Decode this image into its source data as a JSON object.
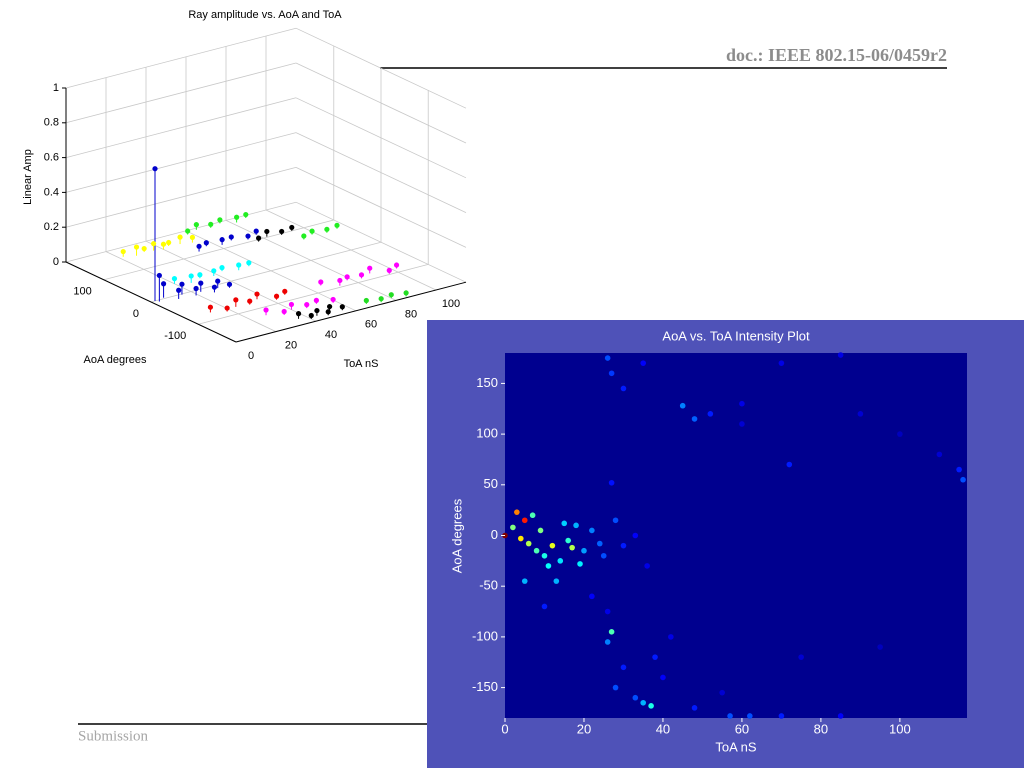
{
  "header": {
    "doc": "doc.: IEEE 802.15-06/0459r2"
  },
  "footer": {
    "text": "Submission"
  },
  "chart_data": [
    {
      "type": "scatter3d",
      "title": "Ray amplitude vs. AoA and ToA",
      "x_label": "ToA nS",
      "y_label": "AoA degrees",
      "z_label": "Linear Amp",
      "xlim": [
        0,
        115
      ],
      "ylim": [
        -180,
        180
      ],
      "zlim": [
        0,
        1
      ],
      "xticks": [
        0,
        20,
        40,
        60,
        80,
        100
      ],
      "yticks": [
        -100,
        0,
        100
      ],
      "zticks": [
        0,
        0.2,
        0.4,
        0.6,
        0.8,
        1
      ],
      "grid": true,
      "series": [
        {
          "color": "#0000cc",
          "x": [
            2
          ],
          "y": [
            0
          ],
          "z": [
            0.76
          ]
        },
        {
          "color": "#ffff00",
          "x": [
            22,
            27,
            32,
            36,
            40,
            44,
            49,
            54
          ],
          "y": [
            152,
            145,
            150,
            147,
            143,
            149,
            146,
            141
          ],
          "z": [
            0.03,
            0.05,
            0.02,
            0.04,
            0.03,
            0.02,
            0.04,
            0.03
          ]
        },
        {
          "color": "#0000cc",
          "x": [
            3,
            7,
            11,
            15,
            19,
            23,
            27,
            31,
            35
          ],
          "y": [
            -5,
            3,
            -12,
            -2,
            -15,
            -8,
            -20,
            -10,
            -18
          ],
          "z": [
            0.15,
            0.08,
            0.05,
            0.06,
            0.04,
            0.05,
            0.03,
            0.04,
            0.02
          ]
        },
        {
          "color": "#00ffff",
          "x": [
            20,
            26,
            32,
            38,
            44,
            50,
            56
          ],
          "y": [
            35,
            25,
            32,
            28,
            36,
            26,
            30
          ],
          "z": [
            0.03,
            0.04,
            0.02,
            0.03,
            0.02,
            0.03,
            0.02
          ]
        },
        {
          "color": "#ee0000",
          "x": [
            12,
            18,
            24,
            30,
            36,
            42,
            48
          ],
          "y": [
            -75,
            -85,
            -78,
            -82,
            -72,
            -88,
            -80
          ],
          "z": [
            0.03,
            0.02,
            0.04,
            0.02,
            0.03,
            0.02,
            0.02
          ]
        },
        {
          "color": "#ff00ff",
          "x": [
            66,
            72,
            78,
            84,
            90,
            96,
            102
          ],
          "y": [
            -80,
            -95,
            -85,
            -90,
            -82,
            -98,
            -88
          ],
          "z": [
            0.02,
            0.03,
            0.02,
            0.02,
            0.03,
            0.02,
            0.02
          ]
        },
        {
          "color": "#ff00ff",
          "x": [
            28,
            34,
            40,
            46,
            52,
            58
          ],
          "y": [
            -125,
            -138,
            -128,
            -135,
            -130,
            -140
          ],
          "z": [
            0.03,
            0.02,
            0.03,
            0.02,
            0.02,
            0.02
          ]
        },
        {
          "color": "#000000",
          "x": [
            36,
            40,
            44,
            48,
            52,
            56
          ],
          "y": [
            -160,
            -170,
            -165,
            -172,
            -158,
            -168
          ],
          "z": [
            0.03,
            0.02,
            0.03,
            0.02,
            0.02,
            0.02
          ]
        },
        {
          "color": "#22dd22",
          "x": [
            68,
            74,
            80,
            86
          ],
          "y": [
            -168,
            -174,
            -170,
            -176
          ],
          "z": [
            0.02,
            0.02,
            0.02,
            0.02
          ]
        },
        {
          "color": "#22ee22",
          "x": [
            58,
            64,
            70,
            76,
            82,
            88
          ],
          "y": [
            168,
            175,
            170,
            176,
            166,
            172
          ],
          "z": [
            0.02,
            0.03,
            0.02,
            0.02,
            0.03,
            0.02
          ]
        },
        {
          "color": "#0000cc",
          "x": [
            50,
            56,
            62,
            68,
            74,
            80
          ],
          "y": [
            110,
            120,
            112,
            118,
            108,
            116
          ],
          "z": [
            0.03,
            0.02,
            0.03,
            0.02,
            0.02,
            0.02
          ]
        },
        {
          "color": "#000000",
          "x": [
            76,
            82,
            88,
            94
          ],
          "y": [
            94,
            102,
            96,
            100
          ],
          "z": [
            0.02,
            0.03,
            0.02,
            0.02
          ]
        },
        {
          "color": "#22ee22",
          "x": [
            92,
            98,
            104,
            110
          ],
          "y": [
            66,
            74,
            68,
            72
          ],
          "z": [
            0.02,
            0.02,
            0.02,
            0.02
          ]
        }
      ]
    },
    {
      "type": "scatter",
      "title": "AoA vs. ToA Intensity Plot",
      "x_label": "ToA nS",
      "y_label": "AoA degrees",
      "xlim": [
        0,
        117
      ],
      "ylim": [
        -180,
        180
      ],
      "xticks": [
        0,
        20,
        40,
        60,
        80,
        100
      ],
      "yticks": [
        -150,
        -100,
        -50,
        0,
        50,
        100,
        150
      ],
      "colormap": "jet",
      "clim": [
        0,
        1
      ],
      "background": "#00008f",
      "panel_color": "#4f52b8",
      "x": [
        0,
        3,
        5,
        6,
        8,
        9,
        10,
        12,
        14,
        16,
        18,
        20,
        22,
        25,
        28,
        30,
        33,
        36,
        2,
        4,
        7,
        11,
        15,
        19,
        13,
        17,
        24,
        10,
        22,
        26,
        5,
        27,
        26,
        27,
        30,
        35,
        45,
        48,
        52,
        60,
        70,
        72,
        85,
        90,
        100,
        115,
        116,
        110,
        60,
        26,
        27,
        28,
        30,
        33,
        35,
        37,
        38,
        40,
        42,
        48,
        55,
        57,
        62,
        70,
        75,
        85,
        95
      ],
      "y": [
        0,
        23,
        15,
        -8,
        -15,
        5,
        -20,
        -10,
        -25,
        -5,
        10,
        -15,
        5,
        -20,
        15,
        -10,
        0,
        -30,
        8,
        -3,
        20,
        -30,
        12,
        -28,
        -45,
        -12,
        -8,
        -70,
        -60,
        -75,
        -45,
        52,
        175,
        160,
        145,
        170,
        128,
        115,
        120,
        130,
        170,
        70,
        178,
        120,
        100,
        65,
        55,
        80,
        110,
        -105,
        -95,
        -150,
        -130,
        -160,
        -165,
        -168,
        -120,
        -140,
        -100,
        -170,
        -155,
        -178,
        -178,
        -178,
        -120,
        -178,
        -110
      ],
      "values": [
        1.0,
        0.75,
        0.85,
        0.55,
        0.45,
        0.5,
        0.4,
        0.6,
        0.35,
        0.42,
        0.3,
        0.28,
        0.25,
        0.2,
        0.2,
        0.15,
        0.12,
        0.1,
        0.5,
        0.65,
        0.45,
        0.38,
        0.33,
        0.36,
        0.3,
        0.55,
        0.22,
        0.15,
        0.12,
        0.1,
        0.3,
        0.14,
        0.2,
        0.18,
        0.15,
        0.12,
        0.25,
        0.22,
        0.15,
        0.1,
        0.1,
        0.15,
        0.1,
        0.08,
        0.06,
        0.15,
        0.2,
        0.08,
        0.08,
        0.25,
        0.45,
        0.2,
        0.15,
        0.2,
        0.3,
        0.4,
        0.15,
        0.12,
        0.1,
        0.15,
        0.08,
        0.2,
        0.2,
        0.15,
        0.08,
        0.12,
        0.06
      ]
    }
  ]
}
